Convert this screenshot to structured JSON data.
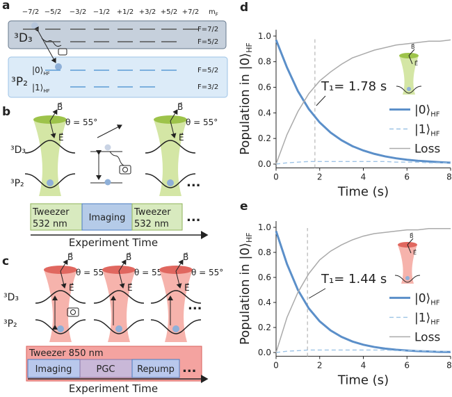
{
  "panels": {
    "a": {
      "label": "a",
      "mf_values": [
        "−7/2",
        "−5/2",
        "−3/2",
        "−1/2",
        "+1/2",
        "+3/2",
        "+5/2",
        "+7/2"
      ],
      "mf_label": "m",
      "mf_sub": "F",
      "d3_label": "³D₃",
      "d3_levels": [
        "F=7/2",
        "F=5/2"
      ],
      "p2_label": "³P₂",
      "p2_states": [
        "|0⟩",
        "|1⟩"
      ],
      "state_sub": "HF",
      "p2_levels": [
        "F=5/2",
        "F=3/2"
      ]
    },
    "b": {
      "label": "b",
      "upper": "³D₃",
      "lower": "³P₂",
      "field_b": "B⃗",
      "angle": "θ = 55°",
      "field_e": "E⃗",
      "sequence": [
        {
          "name": "Tweezer",
          "detail": "532 nm"
        },
        {
          "name": "Imaging"
        },
        {
          "name": "Tweezer",
          "detail": "532 nm"
        }
      ],
      "ellipsis": "...",
      "axis": "Experiment Time"
    },
    "c": {
      "label": "c",
      "upper": "³D₃",
      "lower": "³P₂",
      "field_b": "B⃗",
      "angle": "θ = 55°",
      "field_e": "E⃗",
      "tweezer": "Tweezer 850 nm",
      "sequence": [
        "Imaging",
        "PGC",
        "Repump"
      ],
      "ellipsis": "...",
      "axis": "Experiment Time"
    }
  },
  "chart_data": [
    {
      "type": "line",
      "label": "d",
      "ylabel": "Population in |0⟩",
      "ylabel_sub": "HF",
      "xlabel": "Time (s)",
      "x": [
        0,
        0.5,
        1,
        1.5,
        2,
        2.5,
        3,
        3.5,
        4,
        4.5,
        5,
        5.5,
        6,
        6.5,
        7,
        7.5,
        8
      ],
      "xlim": [
        0,
        8
      ],
      "xticks": [
        0,
        2,
        4,
        6,
        8
      ],
      "ylim": [
        -0.03,
        1.05
      ],
      "yticks": [
        {
          "value": 0,
          "label": "0.0"
        },
        0.2,
        0.4,
        0.6,
        0.8,
        {
          "value": 1,
          "label": "1.0"
        }
      ],
      "legend": "lower right",
      "series": [
        {
          "name": "|0⟩",
          "subscript": "HF",
          "color": "#5b8fc9",
          "dash": false,
          "values": [
            0.97,
            0.755,
            0.57,
            0.43,
            0.325,
            0.246,
            0.186,
            0.14,
            0.106,
            0.08,
            0.06,
            0.045,
            0.034,
            0.026,
            0.02,
            0.015,
            0.011
          ]
        },
        {
          "name": "|1⟩",
          "subscript": "HF",
          "color": "#9dc3e6",
          "dash": true,
          "values": [
            0,
            0.01,
            0.015,
            0.02,
            0.02,
            0.02,
            0.02,
            0.02,
            0.02,
            0.02,
            0.02,
            0.015,
            0.015,
            0.015,
            0.01,
            0.01,
            0.01
          ]
        },
        {
          "name": "Loss",
          "color": "#aaaaaa",
          "dash": false,
          "values": [
            0,
            0.23,
            0.41,
            0.55,
            0.65,
            0.72,
            0.78,
            0.83,
            0.86,
            0.89,
            0.91,
            0.93,
            0.94,
            0.95,
            0.96,
            0.96,
            0.97
          ]
        }
      ],
      "annotation": {
        "text": "T₁= 1.78 s",
        "x": 1.78
      }
    },
    {
      "type": "line",
      "label": "e",
      "ylabel": "Population in |0⟩",
      "ylabel_sub": "HF",
      "xlabel": "Time (s)",
      "x": [
        0,
        0.5,
        1,
        1.5,
        2,
        2.5,
        3,
        3.5,
        4,
        4.5,
        5,
        5.5,
        6,
        6.5,
        7,
        7.5,
        8
      ],
      "xlim": [
        0,
        8
      ],
      "xticks": [
        0,
        2,
        4,
        6,
        8
      ],
      "ylim": [
        -0.03,
        1.05
      ],
      "yticks": [
        {
          "value": 0,
          "label": "0.0"
        },
        0.2,
        0.4,
        0.6,
        0.8,
        {
          "value": 1,
          "label": "1.0"
        }
      ],
      "legend": "lower right",
      "series": [
        {
          "name": "|0⟩",
          "subscript": "HF",
          "color": "#5b8fc9",
          "dash": false,
          "values": [
            0.97,
            0.707,
            0.5,
            0.353,
            0.249,
            0.176,
            0.125,
            0.088,
            0.062,
            0.044,
            0.031,
            0.022,
            0.016,
            0.011,
            0.008,
            0.005,
            0.004
          ]
        },
        {
          "name": "|1⟩",
          "subscript": "HF",
          "color": "#9dc3e6",
          "dash": true,
          "values": [
            0,
            0.01,
            0.015,
            0.02,
            0.02,
            0.02,
            0.02,
            0.02,
            0.02,
            0.02,
            0.02,
            0.015,
            0.015,
            0.015,
            0.01,
            0.01,
            0.01
          ]
        },
        {
          "name": "Loss",
          "color": "#aaaaaa",
          "dash": false,
          "values": [
            0,
            0.28,
            0.48,
            0.63,
            0.74,
            0.81,
            0.86,
            0.9,
            0.93,
            0.95,
            0.96,
            0.97,
            0.98,
            0.98,
            0.99,
            0.99,
            0.99
          ]
        }
      ],
      "annotation": {
        "text": "T₁= 1.44 s",
        "x": 1.44
      }
    }
  ]
}
